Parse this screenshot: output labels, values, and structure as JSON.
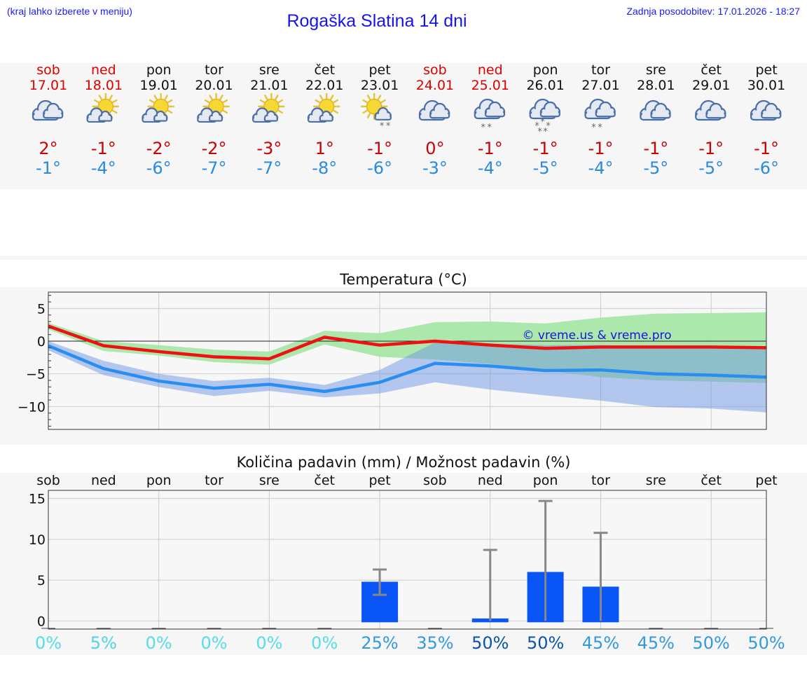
{
  "header": {
    "hint": "(kraj lahko izberete v meniju)",
    "title": "Rogaška Slatina 14 dni",
    "updated": "Zadnja posodobitev: 17.01.2026 - 18:27"
  },
  "forecast": [
    {
      "day": "sob",
      "date": "17.01",
      "weekend": true,
      "icon": "cloud-icon",
      "tmax": "2°",
      "tmin": "-1°"
    },
    {
      "day": "ned",
      "date": "18.01",
      "weekend": true,
      "icon": "sun-cloud-icon",
      "tmax": "-1°",
      "tmin": "-4°"
    },
    {
      "day": "pon",
      "date": "19.01",
      "weekend": false,
      "icon": "sun-cloud-icon",
      "tmax": "-2°",
      "tmin": "-6°"
    },
    {
      "day": "tor",
      "date": "20.01",
      "weekend": false,
      "icon": "sun-cloud-icon",
      "tmax": "-2°",
      "tmin": "-7°"
    },
    {
      "day": "sre",
      "date": "21.01",
      "weekend": false,
      "icon": "sun-cloud-icon",
      "tmax": "-3°",
      "tmin": "-7°"
    },
    {
      "day": "čet",
      "date": "22.01",
      "weekend": false,
      "icon": "sun-cloud-icon",
      "tmax": "1°",
      "tmin": "-8°"
    },
    {
      "day": "pet",
      "date": "23.01",
      "weekend": false,
      "icon": "sun-cloud-snow-icon",
      "tmax": "-1°",
      "tmin": "-6°"
    },
    {
      "day": "sob",
      "date": "24.01",
      "weekend": true,
      "icon": "cloud-icon",
      "tmax": "0°",
      "tmin": "-3°"
    },
    {
      "day": "ned",
      "date": "25.01",
      "weekend": true,
      "icon": "cloud-snow-icon",
      "tmax": "-1°",
      "tmin": "-4°"
    },
    {
      "day": "pon",
      "date": "26.01",
      "weekend": false,
      "icon": "cloud-heavy-snow-icon",
      "tmax": "-1°",
      "tmin": "-5°"
    },
    {
      "day": "tor",
      "date": "27.01",
      "weekend": false,
      "icon": "cloud-snow-icon",
      "tmax": "-1°",
      "tmin": "-4°"
    },
    {
      "day": "sre",
      "date": "28.01",
      "weekend": false,
      "icon": "cloud-icon",
      "tmax": "-1°",
      "tmin": "-5°"
    },
    {
      "day": "čet",
      "date": "29.01",
      "weekend": false,
      "icon": "cloud-icon",
      "tmax": "-1°",
      "tmin": "-5°"
    },
    {
      "day": "pet",
      "date": "30.01",
      "weekend": false,
      "icon": "cloud-icon",
      "tmax": "-1°",
      "tmin": "-6°"
    }
  ],
  "colors": {
    "weekend": "#dd0000",
    "tmax_line": "#ee1111",
    "tmin_line": "#2a8ef0",
    "tmax_band": "#a8e6a8",
    "tmin_band": "#a8c0f0",
    "overlap_band": "#7fbba6",
    "bar": "#0a55f5",
    "errbar": "#888888"
  },
  "chart_data": [
    {
      "type": "line",
      "title": "Temperatura (°C)",
      "watermark": "© vreme.us & vreme.pro",
      "x": [
        0,
        1,
        2,
        3,
        4,
        5,
        6,
        7,
        8,
        9,
        10,
        11,
        12,
        13
      ],
      "ylim": [
        -13.5,
        7.5
      ],
      "yticks": [
        5,
        0,
        -5,
        -10
      ],
      "ytick_labels": [
        "5",
        "0",
        "−5",
        "−10"
      ],
      "grid": true,
      "series": [
        {
          "name": "max",
          "values": [
            2.3,
            -0.7,
            -1.6,
            -2.4,
            -2.7,
            0.6,
            -0.6,
            0.0,
            -0.6,
            -1.1,
            -0.9,
            -0.9,
            -0.9,
            -1.0
          ]
        },
        {
          "name": "min",
          "values": [
            -0.7,
            -4.2,
            -6.1,
            -7.2,
            -6.6,
            -7.7,
            -6.3,
            -3.4,
            -3.8,
            -4.5,
            -4.4,
            -5.0,
            -5.2,
            -5.5
          ]
        }
      ],
      "bands": [
        {
          "name": "max_range",
          "lower": [
            1.8,
            -1.5,
            -2.2,
            -3.2,
            -3.6,
            -0.5,
            -2.4,
            -2.8,
            -3.5,
            -4.5,
            -5.5,
            -6.0,
            -6.2,
            -6.4
          ],
          "upper": [
            2.8,
            0.0,
            -0.6,
            -1.3,
            -1.6,
            1.6,
            1.2,
            2.9,
            3.0,
            2.7,
            3.6,
            4.2,
            4.3,
            4.4
          ]
        },
        {
          "name": "min_range",
          "lower": [
            -1.4,
            -5.2,
            -7.0,
            -8.4,
            -7.6,
            -8.6,
            -8.0,
            -6.3,
            -7.4,
            -8.3,
            -9.1,
            -10.1,
            -10.3,
            -10.9
          ],
          "upper": [
            0.0,
            -3.0,
            -5.0,
            -6.1,
            -5.6,
            -6.7,
            -4.4,
            -0.2,
            -0.4,
            -0.6,
            -0.6,
            -0.8,
            -1.0,
            -1.2
          ]
        }
      ]
    },
    {
      "type": "bar",
      "title": "Količina padavin (mm) / Možnost padavin (%)",
      "categories": [
        "sob",
        "ned",
        "pon",
        "tor",
        "sre",
        "čet",
        "pet",
        "sob",
        "ned",
        "pon",
        "tor",
        "sre",
        "čet",
        "pet"
      ],
      "values": [
        0,
        0,
        0,
        0,
        0,
        0,
        4.8,
        0,
        0.3,
        6.0,
        4.2,
        0,
        0,
        0
      ],
      "error_low": [
        null,
        null,
        null,
        null,
        null,
        null,
        3.2,
        null,
        0,
        0,
        0,
        null,
        null,
        null
      ],
      "error_high": [
        null,
        null,
        null,
        null,
        null,
        null,
        6.3,
        null,
        8.7,
        14.7,
        10.8,
        null,
        null,
        null
      ],
      "ylim": [
        -1,
        16
      ],
      "yticks": [
        15,
        10,
        5,
        0
      ],
      "grid": true,
      "probability": [
        "0%",
        "5%",
        "0%",
        "0%",
        "0%",
        "0%",
        "25%",
        "35%",
        "50%",
        "50%",
        "45%",
        "45%",
        "50%",
        "50%"
      ],
      "probability_colors": [
        "#55dde8",
        "#4fd4e4",
        "#55dde8",
        "#55dde8",
        "#55dde8",
        "#55dde8",
        "#3399dd",
        "#3399dd",
        "#0a55a8",
        "#0a55a8",
        "#3399dd",
        "#3399dd",
        "#3399dd",
        "#3399dd"
      ]
    }
  ]
}
